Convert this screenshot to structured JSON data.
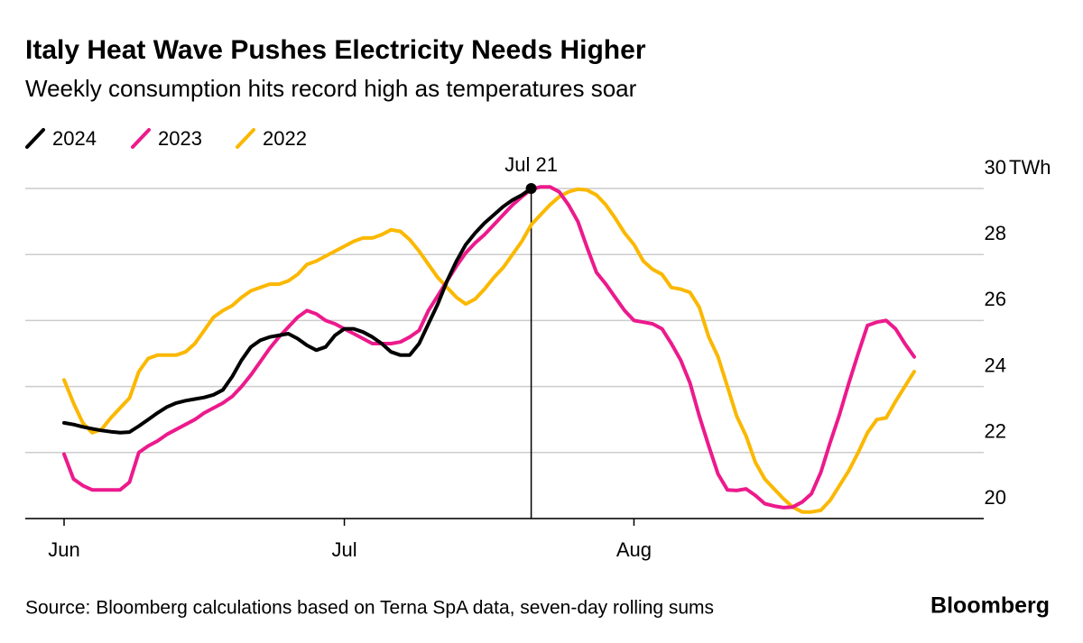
{
  "chart_data": {
    "type": "line",
    "title": "Italy Heat Wave Pushes Electricity Needs Higher",
    "subtitle": "Weekly consumption hits record high as temperatures soar",
    "source": "Source: Bloomberg calculations based on Terna SpA data, seven-day rolling sums",
    "brand": "Bloomberg",
    "annotation": "Jul 21",
    "y_unit": "TWh",
    "categories": [
      "Jun",
      null,
      null,
      null,
      null,
      null,
      null,
      null,
      null,
      null,
      null,
      null,
      null,
      null,
      null,
      null,
      null,
      null,
      null,
      null,
      null,
      null,
      null,
      null,
      null,
      null,
      null,
      null,
      null,
      null,
      "Jul",
      null,
      null,
      null,
      null,
      null,
      null,
      null,
      null,
      null,
      null,
      null,
      null,
      null,
      null,
      null,
      null,
      null,
      null,
      null,
      null,
      null,
      null,
      null,
      null,
      null,
      null,
      null,
      null,
      null,
      null,
      "Aug",
      null,
      null,
      null,
      null,
      null,
      null,
      null,
      null,
      null,
      null,
      null,
      null,
      null,
      null,
      null,
      null,
      null,
      null,
      null,
      null,
      null,
      null,
      null,
      null,
      null,
      null,
      null,
      null,
      null,
      null
    ],
    "series": [
      {
        "name": "2024",
        "color": "#000000",
        "values": [
          22.9,
          22.85,
          22.78,
          22.72,
          22.67,
          22.63,
          22.6,
          22.62,
          22.8,
          23.0,
          23.2,
          23.38,
          23.5,
          23.57,
          23.62,
          23.67,
          23.75,
          23.9,
          24.3,
          24.8,
          25.2,
          25.4,
          25.5,
          25.55,
          25.6,
          25.45,
          25.25,
          25.1,
          25.2,
          25.55,
          25.75,
          25.75,
          25.65,
          25.5,
          25.3,
          25.05,
          24.95,
          24.95,
          25.3,
          25.9,
          26.5,
          27.2,
          27.8,
          28.3,
          28.65,
          28.95,
          29.2,
          29.45,
          29.65,
          29.8,
          30.0,
          null,
          null,
          null,
          null,
          null,
          null,
          null,
          null,
          null,
          null,
          null,
          null,
          null,
          null,
          null,
          null,
          null,
          null,
          null,
          null,
          null,
          null,
          null,
          null,
          null,
          null,
          null,
          null,
          null,
          null,
          null,
          null,
          null,
          null,
          null,
          null,
          null,
          null,
          null,
          null,
          null
        ]
      },
      {
        "name": "2023",
        "color": "#ec1a8c",
        "values": [
          21.95,
          21.2,
          21.0,
          20.87,
          20.87,
          20.87,
          20.87,
          21.1,
          22.0,
          22.2,
          22.35,
          22.55,
          22.7,
          22.85,
          23.0,
          23.2,
          23.35,
          23.5,
          23.7,
          24.0,
          24.35,
          24.75,
          25.15,
          25.5,
          25.8,
          26.1,
          26.3,
          26.2,
          26.0,
          25.9,
          25.75,
          25.6,
          25.45,
          25.3,
          25.3,
          25.3,
          25.35,
          25.5,
          25.7,
          26.3,
          26.75,
          27.2,
          27.65,
          28.05,
          28.35,
          28.6,
          28.9,
          29.2,
          29.5,
          29.75,
          29.97,
          30.05,
          30.05,
          29.9,
          29.5,
          29.0,
          28.2,
          27.45,
          27.1,
          26.7,
          26.3,
          26.0,
          25.95,
          25.9,
          25.75,
          25.3,
          24.8,
          24.1,
          23.1,
          22.2,
          21.35,
          20.87,
          20.85,
          20.9,
          20.7,
          20.45,
          20.38,
          20.33,
          20.35,
          20.5,
          20.75,
          21.4,
          22.3,
          23.15,
          24.1,
          25.0,
          25.85,
          25.95,
          26.0,
          25.75,
          25.3,
          24.9
        ]
      },
      {
        "name": "2022",
        "color": "#fbb800",
        "values": [
          24.2,
          23.5,
          22.9,
          22.6,
          22.7,
          23.05,
          23.35,
          23.65,
          24.45,
          24.85,
          24.95,
          24.95,
          24.95,
          25.05,
          25.3,
          25.7,
          26.1,
          26.3,
          26.45,
          26.7,
          26.9,
          27.0,
          27.1,
          27.1,
          27.2,
          27.4,
          27.7,
          27.8,
          27.95,
          28.1,
          28.25,
          28.4,
          28.5,
          28.5,
          28.6,
          28.75,
          28.7,
          28.45,
          28.1,
          27.7,
          27.3,
          27.0,
          26.7,
          26.5,
          26.65,
          26.95,
          27.3,
          27.6,
          28.0,
          28.4,
          28.9,
          29.2,
          29.5,
          29.75,
          29.9,
          29.98,
          29.95,
          29.8,
          29.5,
          29.1,
          28.65,
          28.3,
          27.8,
          27.55,
          27.4,
          27.0,
          26.95,
          26.85,
          26.4,
          25.5,
          24.9,
          24.0,
          23.1,
          22.5,
          21.7,
          21.2,
          20.9,
          20.6,
          20.35,
          20.2,
          20.2,
          20.25,
          20.55,
          21.0,
          21.45,
          22.0,
          22.6,
          23.0,
          23.05,
          23.55,
          24.0,
          24.45
        ]
      }
    ],
    "ylim": [
      20,
      30
    ],
    "yticks": [
      20,
      22,
      24,
      26,
      28,
      30
    ],
    "grid": true
  }
}
